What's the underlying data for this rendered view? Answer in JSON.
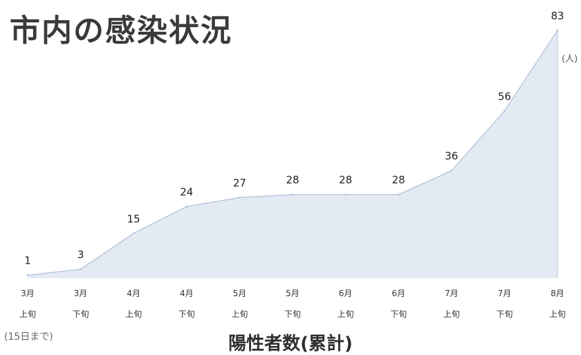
{
  "header": {
    "title": "市内の感染状況"
  },
  "footer": {
    "subtitle": "陽性者数(累計)",
    "note": "(15日まで)"
  },
  "chart_data": {
    "type": "area",
    "title": "市内の感染状況",
    "subtitle": "陽性者数(累計)",
    "unit": "(人)",
    "categories": [
      [
        "3月",
        "上旬"
      ],
      [
        "3月",
        "下旬"
      ],
      [
        "4月",
        "上旬"
      ],
      [
        "4月",
        "下旬"
      ],
      [
        "5月",
        "上旬"
      ],
      [
        "5月",
        "下旬"
      ],
      [
        "6月",
        "上旬"
      ],
      [
        "6月",
        "下旬"
      ],
      [
        "7月",
        "上旬"
      ],
      [
        "7月",
        "下旬"
      ],
      [
        "8月",
        "上旬"
      ]
    ],
    "values": [
      1,
      3,
      15,
      24,
      27,
      28,
      28,
      28,
      36,
      56,
      83
    ],
    "ylim": [
      0,
      83
    ],
    "grid": false,
    "colors": {
      "area_fill": "#e3eaf3",
      "line": "#b9c8dc",
      "drop_line": "#c8d4e4"
    }
  }
}
